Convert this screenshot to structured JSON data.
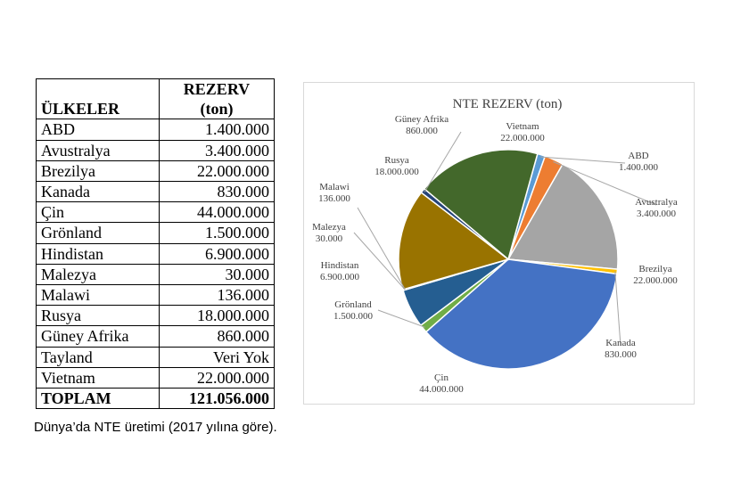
{
  "table": {
    "header_reserve_line1": "REZERV",
    "header_reserve_line2": "(ton)",
    "header_country": "ÜLKELER",
    "rows": [
      {
        "country": "ABD",
        "value": "1.400.000"
      },
      {
        "country": "Avustralya",
        "value": "3.400.000"
      },
      {
        "country": "Brezilya",
        "value": "22.000.000"
      },
      {
        "country": "Kanada",
        "value": "830.000"
      },
      {
        "country": "Çin",
        "value": "44.000.000"
      },
      {
        "country": "Grönland",
        "value": "1.500.000"
      },
      {
        "country": "Hindistan",
        "value": "6.900.000"
      },
      {
        "country": "Malezya",
        "value": "30.000"
      },
      {
        "country": "Malawi",
        "value": "136.000"
      },
      {
        "country": "Rusya",
        "value": "18.000.000"
      },
      {
        "country": "Güney Afrika",
        "value": "860.000"
      },
      {
        "country": "Tayland",
        "value": "Veri Yok"
      },
      {
        "country": "Vietnam",
        "value": "22.000.000"
      }
    ],
    "total_label": "TOPLAM",
    "total_value": "121.056.000"
  },
  "caption": "Dünya’da NTE üretimi (2017 yılına göre).",
  "chart_data": {
    "type": "pie",
    "title": "NTE REZERV (ton)",
    "slices": [
      {
        "name": "ABD",
        "value": 1400000,
        "label": "1.400.000",
        "color": "#5b9bd5"
      },
      {
        "name": "Avustralya",
        "value": 3400000,
        "label": "3.400.000",
        "color": "#ed7d31"
      },
      {
        "name": "Brezilya",
        "value": 22000000,
        "label": "22.000.000",
        "color": "#a5a5a5"
      },
      {
        "name": "Kanada",
        "value": 830000,
        "label": "830.000",
        "color": "#ffc000"
      },
      {
        "name": "Çin",
        "value": 44000000,
        "label": "44.000.000",
        "color": "#4472c4"
      },
      {
        "name": "Grönland",
        "value": 1500000,
        "label": "1.500.000",
        "color": "#70ad47"
      },
      {
        "name": "Hindistan",
        "value": 6900000,
        "label": "6.900.000",
        "color": "#255e91"
      },
      {
        "name": "Malezya",
        "value": 30000,
        "label": "30.000",
        "color": "#9e480e"
      },
      {
        "name": "Malawi",
        "value": 136000,
        "label": "136.000",
        "color": "#636363"
      },
      {
        "name": "Rusya",
        "value": 18000000,
        "label": "18.000.000",
        "color": "#997300"
      },
      {
        "name": "Güney Afrika",
        "value": 860000,
        "label": "860.000",
        "color": "#264478"
      },
      {
        "name": "Vietnam",
        "value": 22000000,
        "label": "22.000.000",
        "color": "#43682b"
      }
    ]
  }
}
